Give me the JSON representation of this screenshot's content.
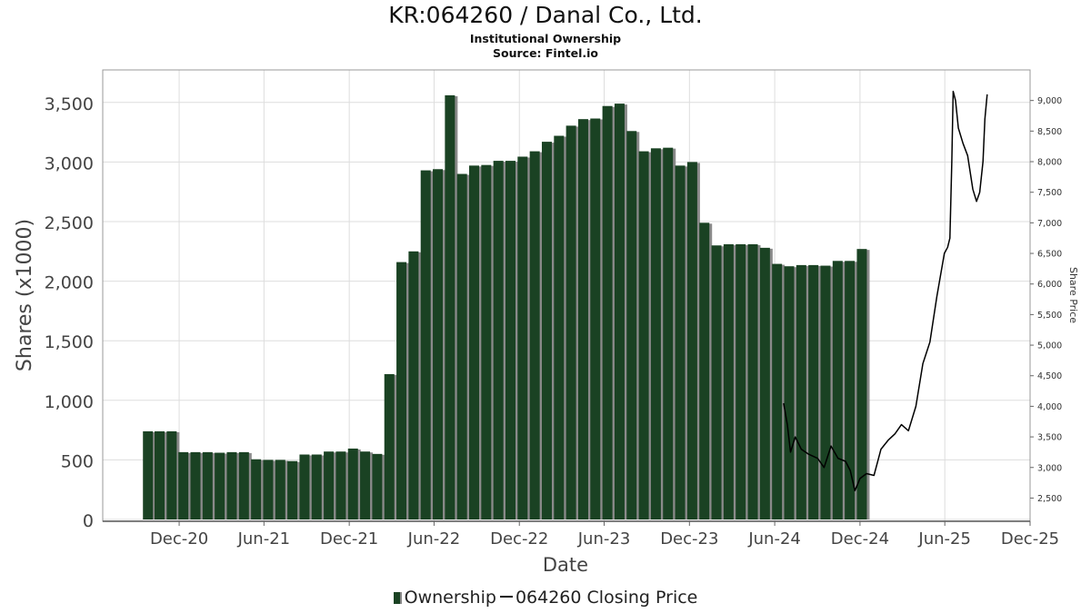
{
  "header": {
    "title": "KR:064260 / Danal Co., Ltd.",
    "subtitle": "Institutional Ownership",
    "source": "Source: Fintel.io"
  },
  "legend": {
    "ownership": "Ownership",
    "price": "064260 Closing Price"
  },
  "colors": {
    "bar": "#1a4223",
    "bar_shadow": "#8a8a8a",
    "price_line": "#000000",
    "grid": "#dddddd",
    "axis_text": "#444444"
  },
  "chart_data": {
    "type": "bar",
    "title": "KR:064260 / Danal Co., Ltd.",
    "subtitle": "Institutional Ownership",
    "xlabel": "Date",
    "ylabel": "Shares (x1000)",
    "y2label": "Share Price",
    "x_ticks": [
      "Dec-20",
      "Jun-21",
      "Dec-21",
      "Jun-22",
      "Dec-22",
      "Jun-23",
      "Dec-23",
      "Jun-24",
      "Dec-24",
      "Jun-25",
      "Dec-25"
    ],
    "x_tick_dates": [
      "2020-12-01",
      "2021-06-01",
      "2021-12-01",
      "2022-06-01",
      "2022-12-01",
      "2023-06-01",
      "2023-12-01",
      "2024-06-01",
      "2024-12-01",
      "2025-06-01",
      "2025-12-01"
    ],
    "xlim": [
      "2020-06-20",
      "2025-12-01"
    ],
    "ylim": [
      0,
      3750
    ],
    "y_ticks": [
      0,
      500,
      1000,
      1500,
      2000,
      2500,
      3000,
      3500
    ],
    "y_tick_labels": [
      "0",
      "500",
      "1,000",
      "1,500",
      "2,000",
      "2,500",
      "3,000",
      "3,500"
    ],
    "y2lim": [
      2150,
      9500
    ],
    "y2_ticks": [
      2500,
      3000,
      3500,
      4000,
      4500,
      5000,
      5500,
      6000,
      6500,
      7000,
      7500,
      8000,
      8500,
      9000
    ],
    "y2_tick_labels": [
      "2,500",
      "3,000",
      "3,500",
      "4,000",
      "4,500",
      "5,000",
      "5,500",
      "6,000",
      "6,500",
      "7,000",
      "7,500",
      "8,000",
      "8,500",
      "9,000"
    ],
    "grid": true,
    "legend_position": "bottom",
    "series": [
      {
        "name": "Ownership",
        "type": "bar",
        "points": [
          {
            "x": "2020-09-25",
            "y": 740
          },
          {
            "x": "2020-10-20",
            "y": 740
          },
          {
            "x": "2020-11-15",
            "y": 740
          },
          {
            "x": "2020-12-10",
            "y": 565
          },
          {
            "x": "2021-01-05",
            "y": 565
          },
          {
            "x": "2021-01-31",
            "y": 565
          },
          {
            "x": "2021-02-26",
            "y": 560
          },
          {
            "x": "2021-03-24",
            "y": 565
          },
          {
            "x": "2021-04-19",
            "y": 565
          },
          {
            "x": "2021-05-15",
            "y": 505
          },
          {
            "x": "2021-06-10",
            "y": 500
          },
          {
            "x": "2021-07-06",
            "y": 500
          },
          {
            "x": "2021-08-01",
            "y": 490
          },
          {
            "x": "2021-08-27",
            "y": 545
          },
          {
            "x": "2021-09-22",
            "y": 545
          },
          {
            "x": "2021-10-18",
            "y": 570
          },
          {
            "x": "2021-11-13",
            "y": 570
          },
          {
            "x": "2021-12-09",
            "y": 595
          },
          {
            "x": "2022-01-04",
            "y": 570
          },
          {
            "x": "2022-01-30",
            "y": 550
          },
          {
            "x": "2022-02-25",
            "y": 1220
          },
          {
            "x": "2022-03-23",
            "y": 2160
          },
          {
            "x": "2022-04-18",
            "y": 2250
          },
          {
            "x": "2022-05-14",
            "y": 2930
          },
          {
            "x": "2022-06-09",
            "y": 2940
          },
          {
            "x": "2022-07-05",
            "y": 3560
          },
          {
            "x": "2022-07-31",
            "y": 2900
          },
          {
            "x": "2022-08-26",
            "y": 2970
          },
          {
            "x": "2022-09-21",
            "y": 2975
          },
          {
            "x": "2022-10-17",
            "y": 3010
          },
          {
            "x": "2022-11-12",
            "y": 3010
          },
          {
            "x": "2022-12-08",
            "y": 3045
          },
          {
            "x": "2023-01-03",
            "y": 3090
          },
          {
            "x": "2023-01-29",
            "y": 3170
          },
          {
            "x": "2023-02-24",
            "y": 3220
          },
          {
            "x": "2023-03-22",
            "y": 3305
          },
          {
            "x": "2023-04-17",
            "y": 3360
          },
          {
            "x": "2023-05-13",
            "y": 3365
          },
          {
            "x": "2023-06-08",
            "y": 3470
          },
          {
            "x": "2023-07-04",
            "y": 3490
          },
          {
            "x": "2023-07-30",
            "y": 3260
          },
          {
            "x": "2023-08-25",
            "y": 3090
          },
          {
            "x": "2023-09-20",
            "y": 3115
          },
          {
            "x": "2023-10-16",
            "y": 3120
          },
          {
            "x": "2023-11-11",
            "y": 2970
          },
          {
            "x": "2023-12-07",
            "y": 3000
          },
          {
            "x": "2024-01-02",
            "y": 2490
          },
          {
            "x": "2024-01-28",
            "y": 2300
          },
          {
            "x": "2024-02-23",
            "y": 2310
          },
          {
            "x": "2024-03-20",
            "y": 2310
          },
          {
            "x": "2024-04-15",
            "y": 2310
          },
          {
            "x": "2024-05-11",
            "y": 2280
          },
          {
            "x": "2024-06-06",
            "y": 2145
          },
          {
            "x": "2024-07-02",
            "y": 2125
          },
          {
            "x": "2024-07-28",
            "y": 2135
          },
          {
            "x": "2024-08-23",
            "y": 2135
          },
          {
            "x": "2024-09-18",
            "y": 2130
          },
          {
            "x": "2024-10-14",
            "y": 2170
          },
          {
            "x": "2024-11-09",
            "y": 2170
          },
          {
            "x": "2024-12-05",
            "y": 2270
          }
        ]
      },
      {
        "name": "064260 Closing Price",
        "type": "line",
        "axis": "right",
        "points": [
          {
            "x": "2024-06-20",
            "y": 4050
          },
          {
            "x": "2024-06-28",
            "y": 3700
          },
          {
            "x": "2024-07-05",
            "y": 3250
          },
          {
            "x": "2024-07-15",
            "y": 3500
          },
          {
            "x": "2024-07-28",
            "y": 3300
          },
          {
            "x": "2024-08-12",
            "y": 3220
          },
          {
            "x": "2024-09-01",
            "y": 3150
          },
          {
            "x": "2024-09-15",
            "y": 3000
          },
          {
            "x": "2024-09-30",
            "y": 3350
          },
          {
            "x": "2024-10-15",
            "y": 3150
          },
          {
            "x": "2024-10-31",
            "y": 3100
          },
          {
            "x": "2024-11-10",
            "y": 2950
          },
          {
            "x": "2024-11-20",
            "y": 2620
          },
          {
            "x": "2024-12-01",
            "y": 2820
          },
          {
            "x": "2024-12-15",
            "y": 2900
          },
          {
            "x": "2024-12-31",
            "y": 2870
          },
          {
            "x": "2025-01-15",
            "y": 3300
          },
          {
            "x": "2025-01-31",
            "y": 3450
          },
          {
            "x": "2025-02-14",
            "y": 3550
          },
          {
            "x": "2025-02-28",
            "y": 3700
          },
          {
            "x": "2025-03-15",
            "y": 3600
          },
          {
            "x": "2025-03-31",
            "y": 4000
          },
          {
            "x": "2025-04-15",
            "y": 4700
          },
          {
            "x": "2025-04-30",
            "y": 5050
          },
          {
            "x": "2025-05-15",
            "y": 5800
          },
          {
            "x": "2025-05-31",
            "y": 6500
          },
          {
            "x": "2025-06-07",
            "y": 6600
          },
          {
            "x": "2025-06-12",
            "y": 6750
          },
          {
            "x": "2025-06-16",
            "y": 8000
          },
          {
            "x": "2025-06-19",
            "y": 9150
          },
          {
            "x": "2025-06-24",
            "y": 9000
          },
          {
            "x": "2025-06-30",
            "y": 8550
          },
          {
            "x": "2025-07-10",
            "y": 8300
          },
          {
            "x": "2025-07-20",
            "y": 8100
          },
          {
            "x": "2025-07-31",
            "y": 7550
          },
          {
            "x": "2025-08-08",
            "y": 7350
          },
          {
            "x": "2025-08-15",
            "y": 7500
          },
          {
            "x": "2025-08-22",
            "y": 8000
          },
          {
            "x": "2025-08-26",
            "y": 8700
          },
          {
            "x": "2025-08-31",
            "y": 9100
          }
        ]
      }
    ]
  }
}
